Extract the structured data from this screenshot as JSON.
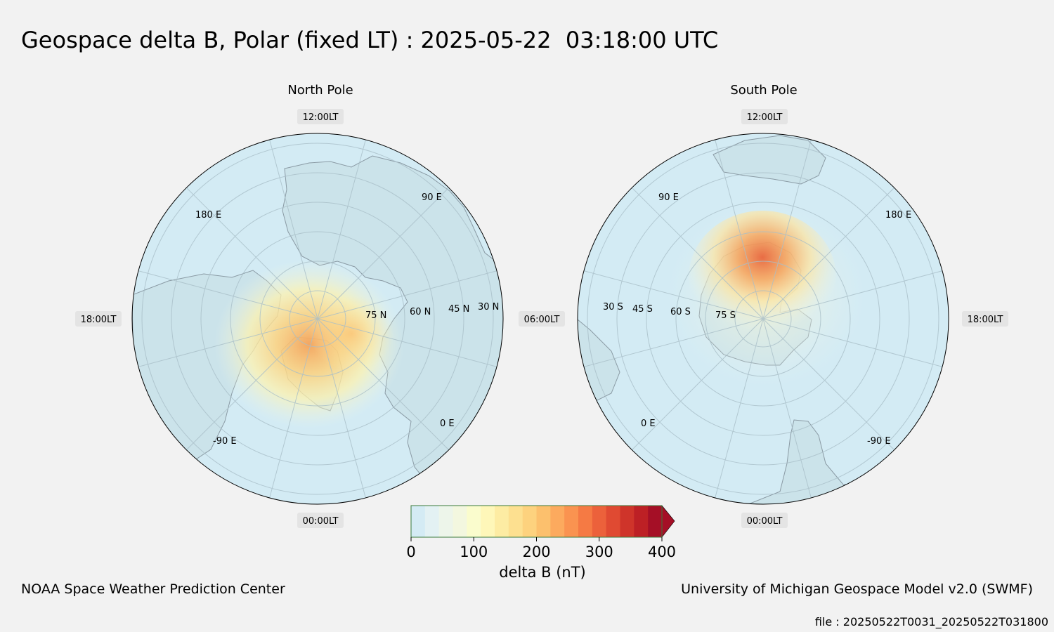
{
  "title": "Geospace delta B, Polar (fixed LT) : 2025-05-22  03:18:00 UTC",
  "maps": [
    {
      "name": "North Pole",
      "lt_labels": {
        "top": "12:00LT",
        "bottom": "00:00LT",
        "left": "18:00LT",
        "right": "06:00LT"
      },
      "lon_labels": [
        "180 E",
        "90 E",
        "0 E",
        "-90 E"
      ],
      "lat_labels": [
        "75 N",
        "60 N",
        "45 N",
        "30 N"
      ]
    },
    {
      "name": "South Pole",
      "lt_labels": {
        "top": "12:00LT",
        "bottom": "00:00LT",
        "left": "06:00LT",
        "right": "18:00LT"
      },
      "lon_labels": [
        "90 E",
        "180 E",
        "0 E",
        "-90 E"
      ],
      "lat_labels": [
        "30 S",
        "45 S",
        "60 S",
        "75 S"
      ]
    }
  ],
  "colorbar": {
    "label": "delta B (nT)",
    "ticks": [
      "0",
      "100",
      "200",
      "300",
      "400"
    ],
    "min": 0,
    "max": 400,
    "extend": "max",
    "colors": [
      "#d4ebf4",
      "#e3f1f3",
      "#edf5ea",
      "#f3f7df",
      "#fafccd",
      "#fef7b9",
      "#fdeca3",
      "#fde090",
      "#fdd27e",
      "#fcc06d",
      "#fcaa5e",
      "#fa9350",
      "#f57a44",
      "#ec613b",
      "#e04a32",
      "#cf342a",
      "#bd2025",
      "#a50f26"
    ]
  },
  "credits": {
    "left": "NOAA Space Weather Prediction Center",
    "right": "University of Michigan Geospace Model v2.0 (SWMF)",
    "file": "file : 20250522T0031_20250522T031800"
  }
}
